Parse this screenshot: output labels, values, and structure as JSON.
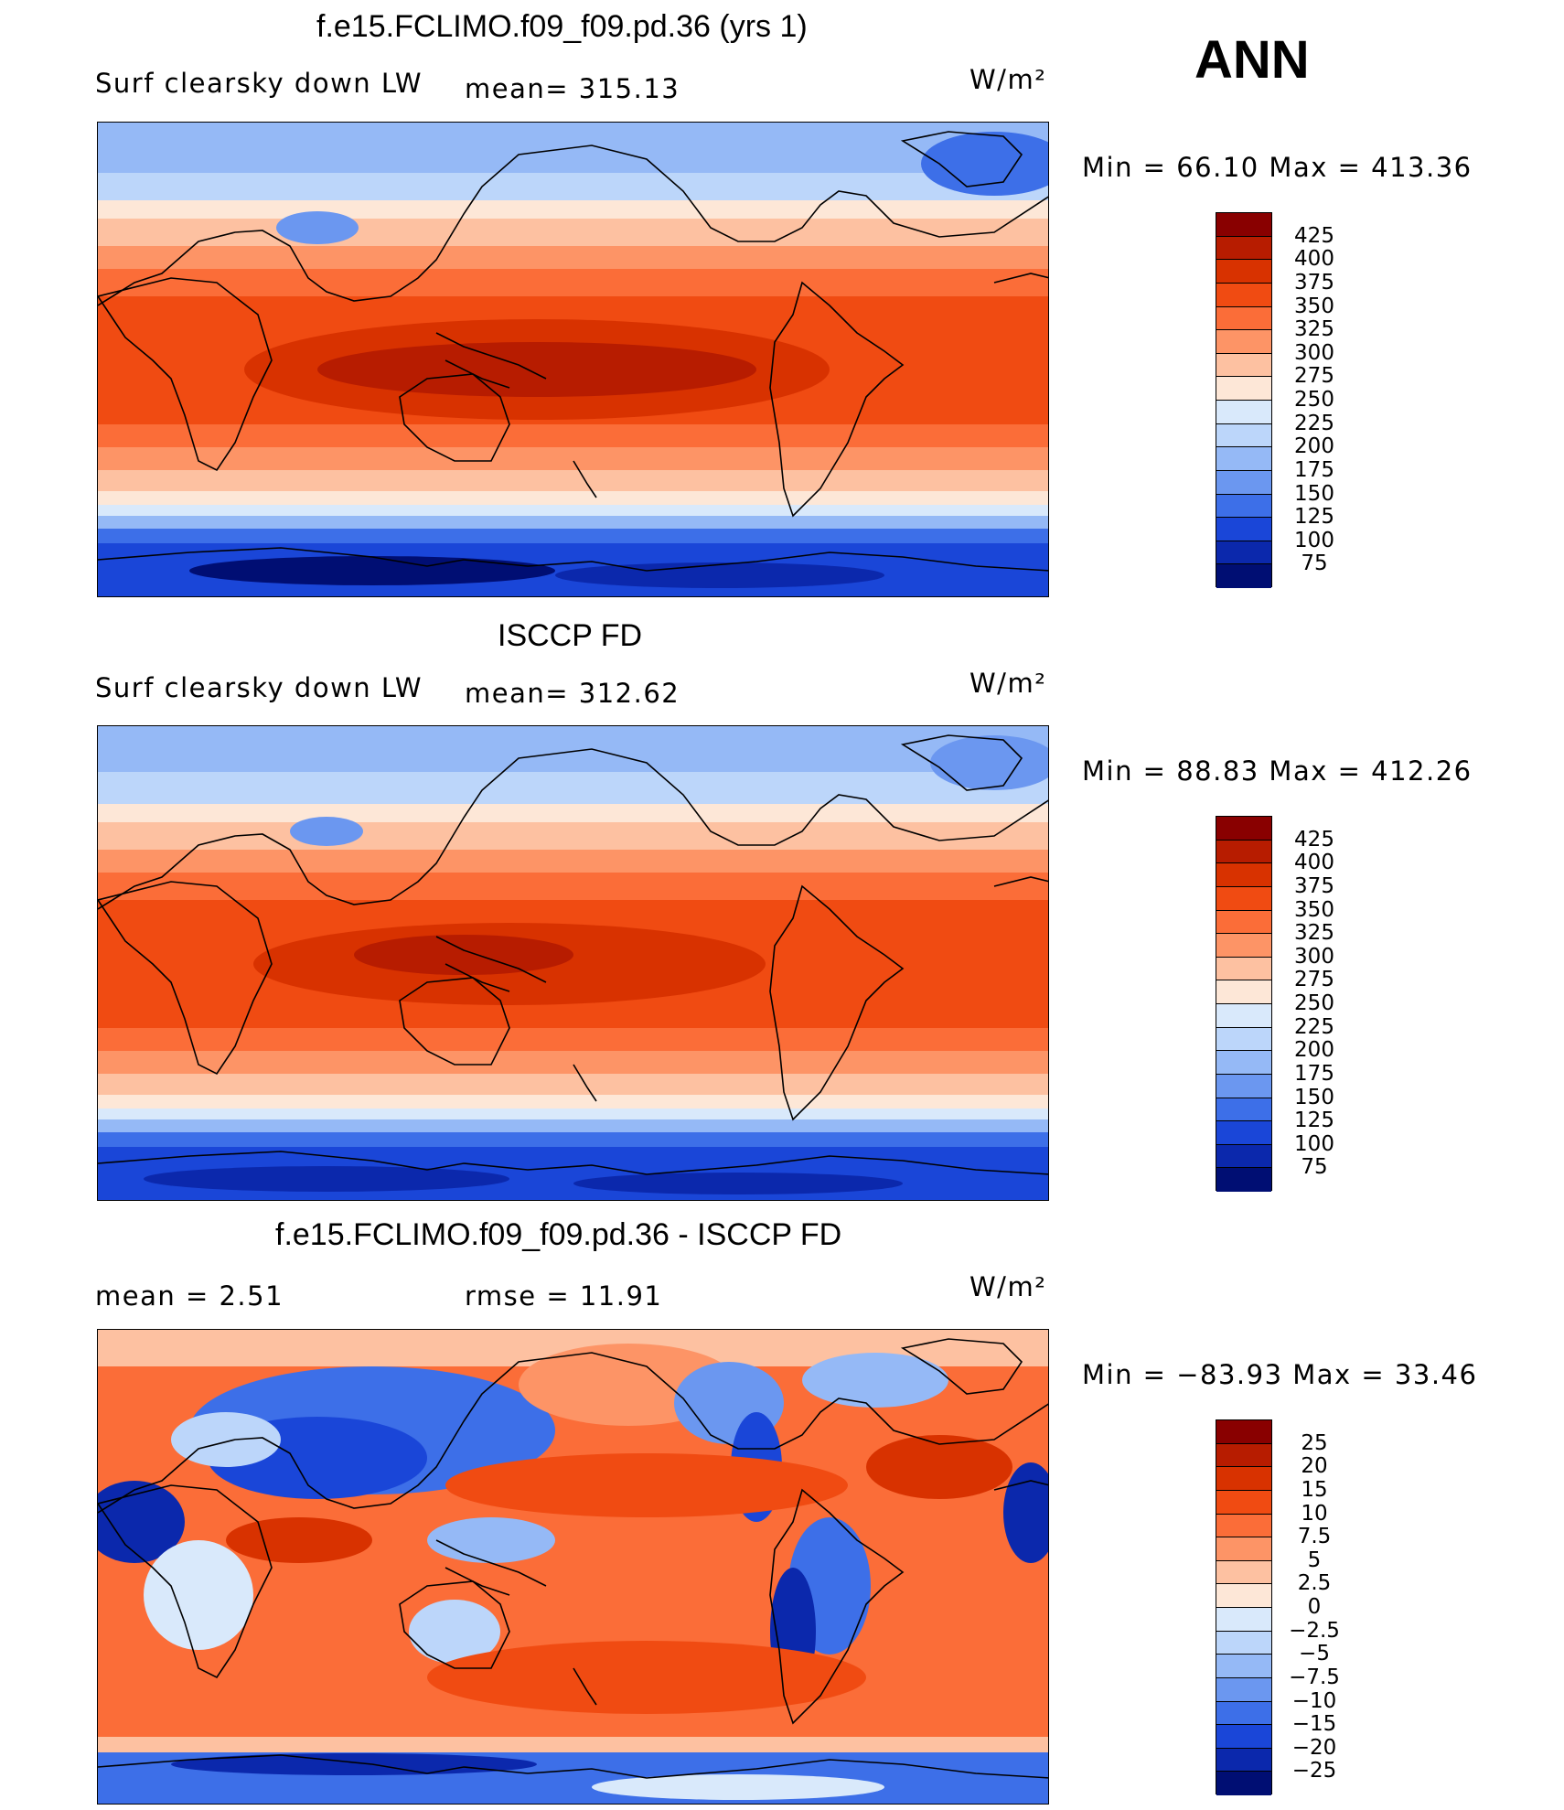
{
  "season": "ANN",
  "units": "W/m²",
  "panels": [
    {
      "title": "f.e15.FCLIMO.f09_f09.pd.36 (yrs 1)",
      "left_label": "Surf  clearsky  down  LW",
      "center_label": "mean=  315.13",
      "units": "W/m²",
      "minmax": "Min  =     66.10  Max  =  413.36",
      "colorbar_labels": [
        "425",
        "400",
        "375",
        "350",
        "325",
        "300",
        "275",
        "250",
        "225",
        "200",
        "175",
        "150",
        "125",
        "100",
        "75"
      ]
    },
    {
      "title": "ISCCP FD",
      "left_label": "Surf  clearsky  down  LW",
      "center_label": "mean=  312.62",
      "units": "W/m²",
      "minmax": "Min  =     88.83  Max  =  412.26",
      "colorbar_labels": [
        "425",
        "400",
        "375",
        "350",
        "325",
        "300",
        "275",
        "250",
        "225",
        "200",
        "175",
        "150",
        "125",
        "100",
        "75"
      ]
    },
    {
      "title": "f.e15.FCLIMO.f09_f09.pd.36 - ISCCP FD",
      "left_label": "mean  =      2.51",
      "center_label": "rmse  =     11.91",
      "units": "W/m²",
      "minmax": "Min  =  −83.93  Max  =     33.46",
      "colorbar_labels": [
        "25",
        "20",
        "15",
        "10",
        "7.5",
        "5",
        "2.5",
        "0",
        "−2.5",
        "−5",
        "−7.5",
        "−10",
        "−15",
        "−20",
        "−25"
      ]
    }
  ],
  "colors": {
    "seq": [
      "#890000",
      "#b71c00",
      "#d83200",
      "#f04b12",
      "#fb6d38",
      "#fd9466",
      "#fdc1a1",
      "#fde7d7",
      "#d9e9fb",
      "#bcd6fa",
      "#95b9f6",
      "#6b97f0",
      "#3d6fe8",
      "#1a46d8",
      "#0b28ac",
      "#000e73"
    ],
    "diff": [
      "#890000",
      "#b71c00",
      "#d83200",
      "#f04b12",
      "#fb6d38",
      "#fd9466",
      "#fdc1a1",
      "#fde7d7",
      "#d9e9fb",
      "#bcd6fa",
      "#95b9f6",
      "#6b97f0",
      "#3d6fe8",
      "#1a46d8",
      "#0b28ac",
      "#000e73"
    ]
  }
}
